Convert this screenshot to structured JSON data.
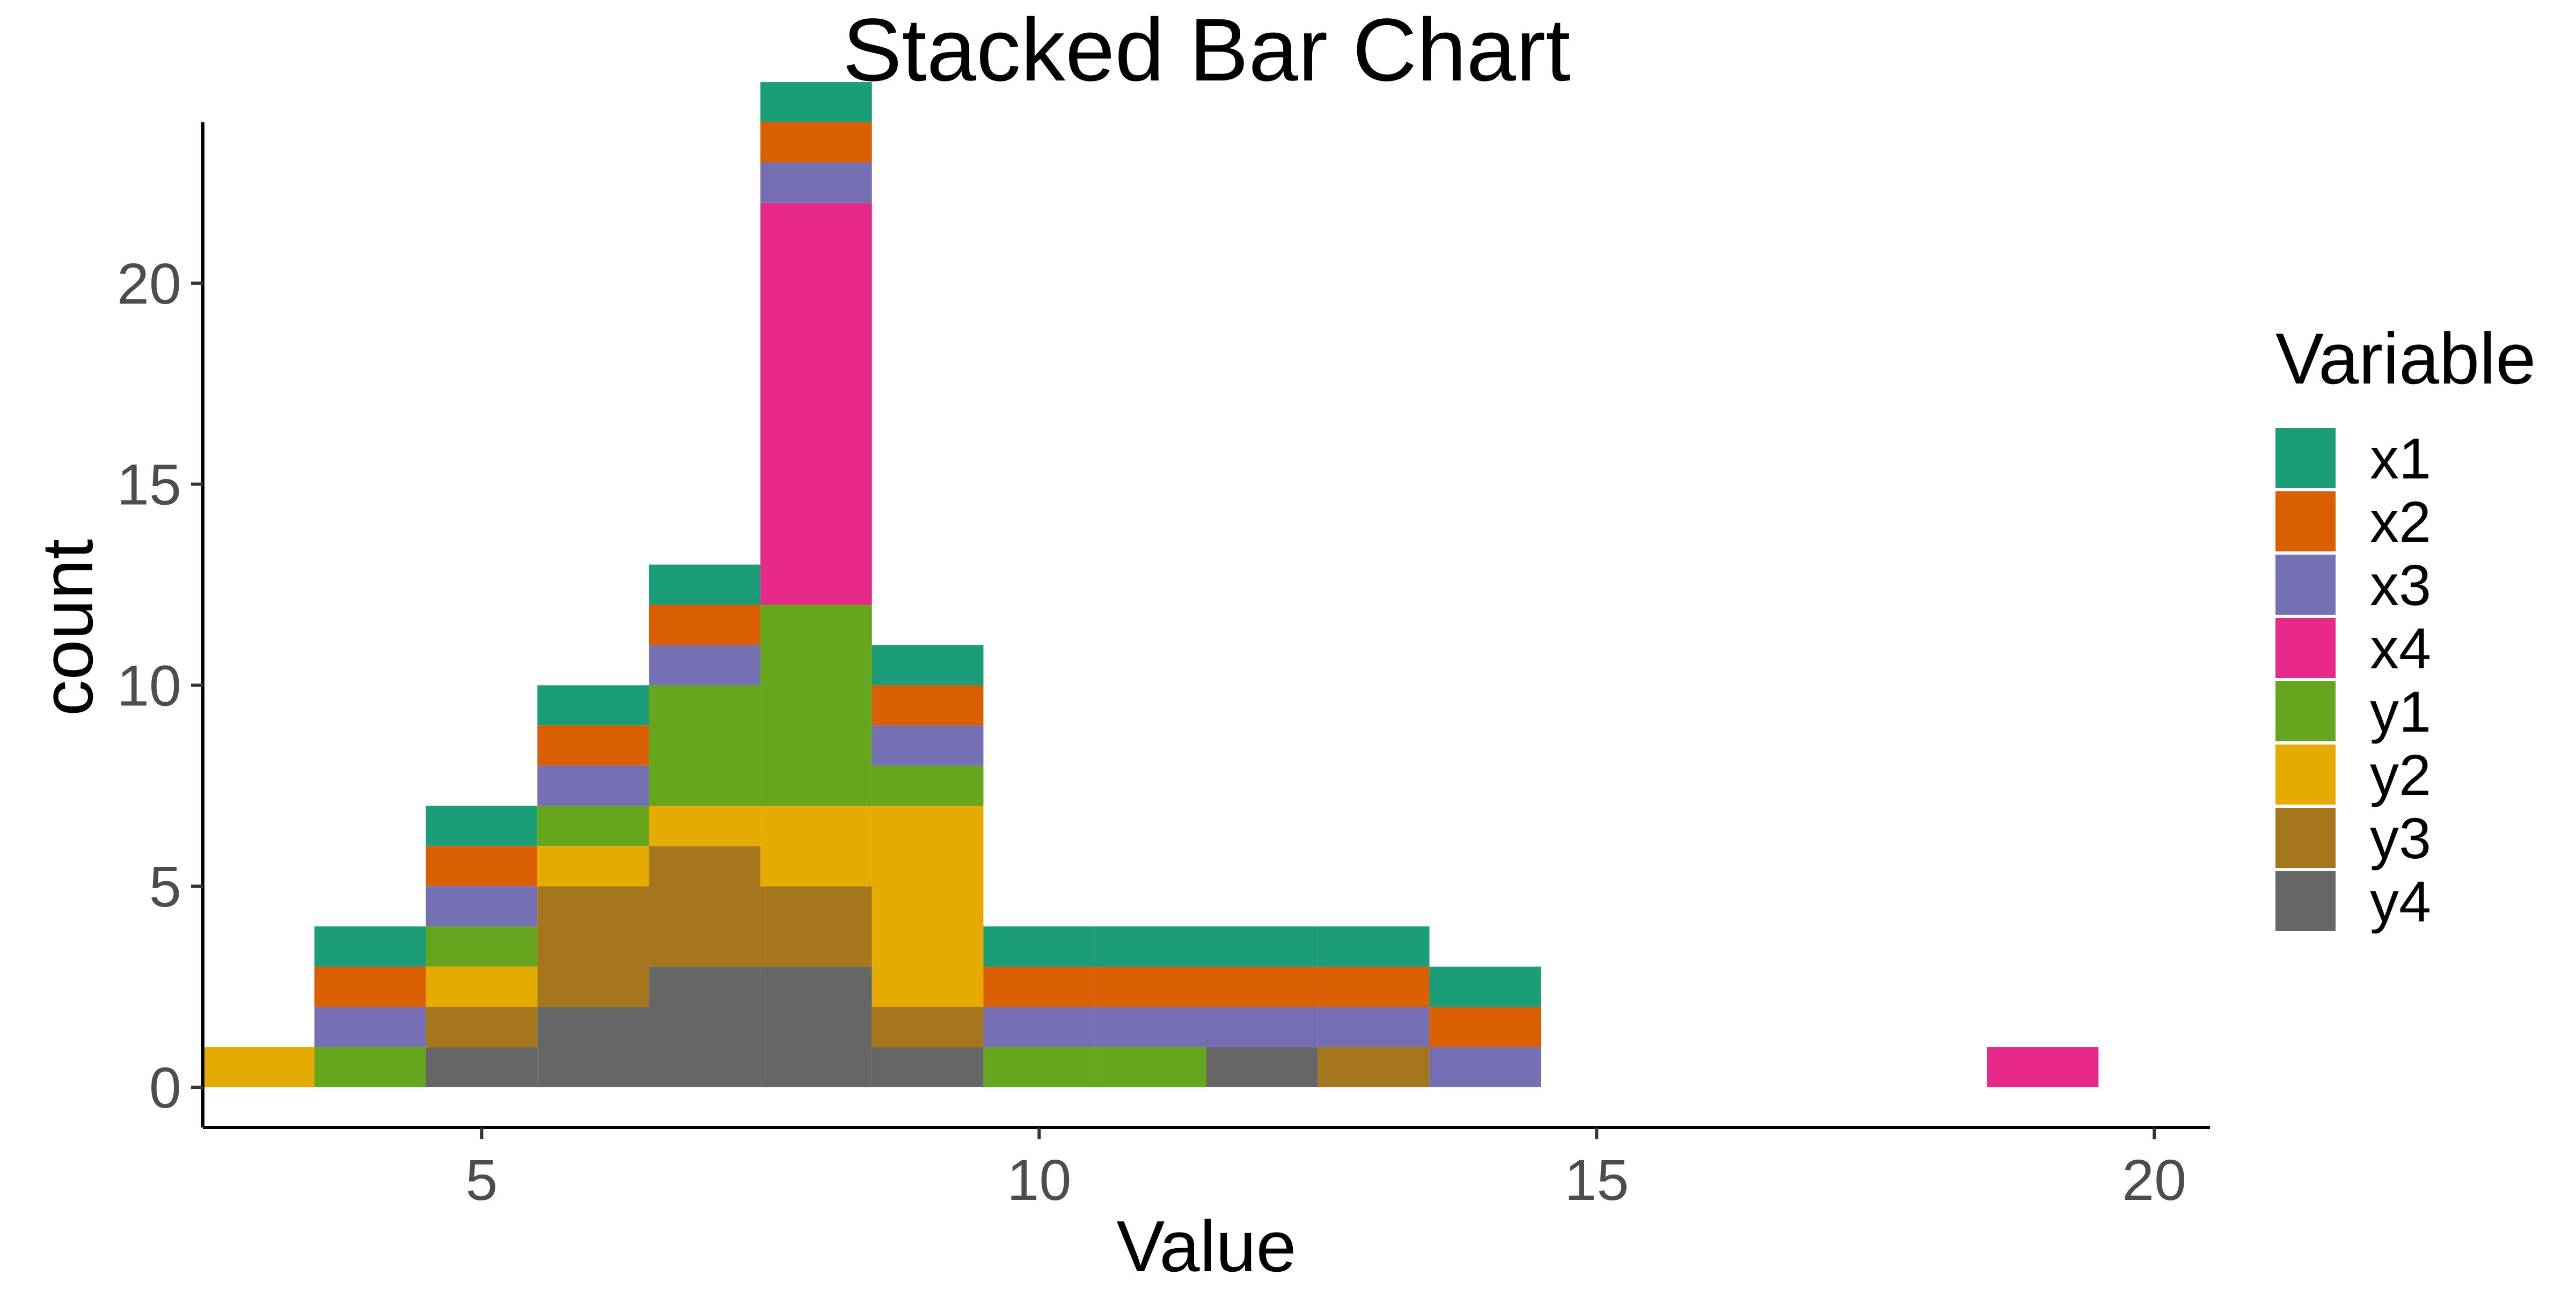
{
  "chart_data": {
    "type": "bar",
    "stacked": true,
    "title": "Stacked Bar Chart",
    "xlabel": "Value",
    "ylabel": "count",
    "legend_title": "Variable",
    "legend_position": "right",
    "grid": false,
    "xlim": [
      2.5,
      20.5
    ],
    "ylim": [
      -1,
      24
    ],
    "xticks": [
      5,
      10,
      15,
      20
    ],
    "yticks": [
      0,
      5,
      10,
      15,
      20
    ],
    "bin_width": 1,
    "bin_centers": [
      3,
      4,
      5,
      6,
      7,
      8,
      9,
      10,
      11,
      12,
      13,
      14,
      15,
      16,
      17,
      18,
      19
    ],
    "series": [
      {
        "name": "x1",
        "color": "#1b9e77",
        "values": [
          0,
          1,
          1,
          1,
          1,
          1,
          1,
          1,
          1,
          1,
          1,
          1,
          0,
          0,
          0,
          0,
          0
        ]
      },
      {
        "name": "x2",
        "color": "#d95f02",
        "values": [
          0,
          1,
          1,
          1,
          1,
          1,
          1,
          1,
          1,
          1,
          1,
          1,
          0,
          0,
          0,
          0,
          0
        ]
      },
      {
        "name": "x3",
        "color": "#7570b3",
        "values": [
          0,
          1,
          1,
          1,
          1,
          1,
          1,
          1,
          1,
          1,
          1,
          1,
          0,
          0,
          0,
          0,
          0
        ]
      },
      {
        "name": "x4",
        "color": "#e7298a",
        "values": [
          0,
          0,
          0,
          0,
          0,
          10,
          0,
          0,
          0,
          0,
          0,
          0,
          0,
          0,
          0,
          0,
          1
        ]
      },
      {
        "name": "y1",
        "color": "#66a61e",
        "values": [
          0,
          1,
          1,
          1,
          3,
          5,
          1,
          1,
          1,
          0,
          0,
          0,
          0,
          0,
          0,
          0,
          0
        ]
      },
      {
        "name": "y2",
        "color": "#e6ab02",
        "values": [
          1,
          0,
          1,
          1,
          1,
          2,
          5,
          0,
          0,
          0,
          0,
          0,
          0,
          0,
          0,
          0,
          0
        ]
      },
      {
        "name": "y3",
        "color": "#a6761d",
        "values": [
          0,
          0,
          1,
          3,
          3,
          2,
          1,
          0,
          0,
          0,
          1,
          0,
          0,
          0,
          0,
          0,
          0
        ]
      },
      {
        "name": "y4",
        "color": "#666666",
        "values": [
          0,
          0,
          1,
          2,
          3,
          3,
          1,
          0,
          0,
          1,
          0,
          0,
          0,
          0,
          0,
          0,
          0
        ]
      }
    ]
  }
}
